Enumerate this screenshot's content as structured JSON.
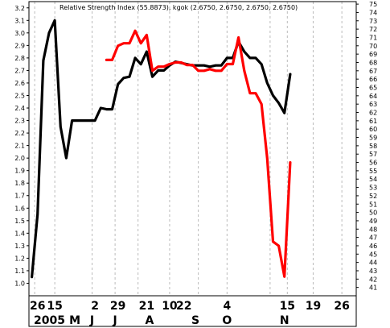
{
  "chart_data": {
    "type": "line",
    "title": "Relative Strength Index (55.8873), kgok (2.6750, 2.6750, 2.6750, 2.6750)",
    "left_axis": {
      "ticks": [
        "3.2",
        "3.1",
        "3.0",
        "2.9",
        "2.8",
        "2.7",
        "2.6",
        "2.5",
        "2.4",
        "2.3",
        "2.2",
        "2.1",
        "2.0",
        "1.9",
        "1.8",
        "1.7",
        "1.6",
        "1.5",
        "1.4",
        "1.3",
        "1.2",
        "1.1",
        "1.0"
      ],
      "ylim": [
        0.9,
        3.25
      ]
    },
    "right_axis": {
      "ticks": [
        "75",
        "74",
        "73",
        "72",
        "71",
        "70",
        "69",
        "68",
        "67",
        "66",
        "65",
        "64",
        "63",
        "62",
        "61",
        "60",
        "59",
        "58",
        "57",
        "56",
        "55",
        "54",
        "53",
        "52",
        "51",
        "50",
        "49",
        "48",
        "47",
        "46",
        "45",
        "44",
        "43",
        "42",
        "41"
      ],
      "ylim": [
        40,
        75.3
      ]
    },
    "x_axis": {
      "day_labels": [
        "26",
        "15",
        "2",
        "29",
        "21",
        "10",
        "22",
        "4",
        "15",
        "19",
        "26"
      ],
      "month_labels": [
        "2005",
        "M",
        "J",
        "J",
        "A",
        "S",
        "O",
        "N"
      ],
      "xlim": [
        0,
        57
      ]
    },
    "series": [
      {
        "color": "#000000",
        "axis": "left",
        "points": [
          [
            0.5,
            1.05
          ],
          [
            1.5,
            1.55
          ],
          [
            2.5,
            2.78
          ],
          [
            3.5,
            3.0
          ],
          [
            4.5,
            3.1
          ],
          [
            5.5,
            2.25
          ],
          [
            6.5,
            2.0
          ],
          [
            7.5,
            2.3
          ],
          [
            8.5,
            2.3
          ],
          [
            9.5,
            2.3
          ],
          [
            10.5,
            2.3
          ],
          [
            11.5,
            2.3
          ],
          [
            12.5,
            2.4
          ],
          [
            13.5,
            2.39
          ],
          [
            14.5,
            2.39
          ],
          [
            15.5,
            2.59
          ],
          [
            16.5,
            2.64
          ],
          [
            17.5,
            2.65
          ],
          [
            18.5,
            2.8
          ],
          [
            19.5,
            2.75
          ],
          [
            20.5,
            2.85
          ],
          [
            21.5,
            2.65
          ],
          [
            22.5,
            2.7
          ],
          [
            23.5,
            2.7
          ],
          [
            24.5,
            2.74
          ],
          [
            25.5,
            2.77
          ],
          [
            26.5,
            2.76
          ],
          [
            27.5,
            2.75
          ],
          [
            28.5,
            2.74
          ],
          [
            29.5,
            2.74
          ],
          [
            30.5,
            2.74
          ],
          [
            31.5,
            2.73
          ],
          [
            32.5,
            2.74
          ],
          [
            33.5,
            2.74
          ],
          [
            34.5,
            2.8
          ],
          [
            35.5,
            2.8
          ],
          [
            36.5,
            2.93
          ],
          [
            37.5,
            2.85
          ],
          [
            38.5,
            2.8
          ],
          [
            39.5,
            2.8
          ],
          [
            40.5,
            2.75
          ],
          [
            41.5,
            2.6
          ],
          [
            42.5,
            2.5
          ],
          [
            43.5,
            2.44
          ],
          [
            44.5,
            2.36
          ],
          [
            45.5,
            2.67
          ]
        ]
      },
      {
        "color": "#ff0000",
        "axis": "right",
        "points": [
          [
            13.5,
            68.3
          ],
          [
            14.5,
            68.3
          ],
          [
            15.5,
            70.0
          ],
          [
            16.5,
            70.3
          ],
          [
            17.5,
            70.3
          ],
          [
            18.5,
            71.8
          ],
          [
            19.5,
            70.3
          ],
          [
            20.5,
            71.3
          ],
          [
            21.5,
            67.0
          ],
          [
            22.5,
            67.5
          ],
          [
            23.5,
            67.5
          ],
          [
            24.5,
            67.8
          ],
          [
            25.5,
            68.0
          ],
          [
            26.5,
            68.0
          ],
          [
            27.5,
            67.7
          ],
          [
            28.5,
            67.7
          ],
          [
            29.5,
            67.0
          ],
          [
            30.5,
            67.0
          ],
          [
            31.5,
            67.2
          ],
          [
            32.5,
            67.0
          ],
          [
            33.5,
            67.0
          ],
          [
            34.5,
            67.8
          ],
          [
            35.5,
            67.8
          ],
          [
            36.5,
            71.0
          ],
          [
            37.5,
            67.0
          ],
          [
            38.5,
            64.3
          ],
          [
            39.5,
            64.3
          ],
          [
            40.5,
            63.0
          ],
          [
            41.5,
            56.5
          ],
          [
            42.5,
            46.5
          ],
          [
            43.5,
            46.0
          ],
          [
            44.5,
            42.3
          ],
          [
            45.5,
            56.0
          ]
        ]
      }
    ],
    "grid": true,
    "legend": "none"
  }
}
